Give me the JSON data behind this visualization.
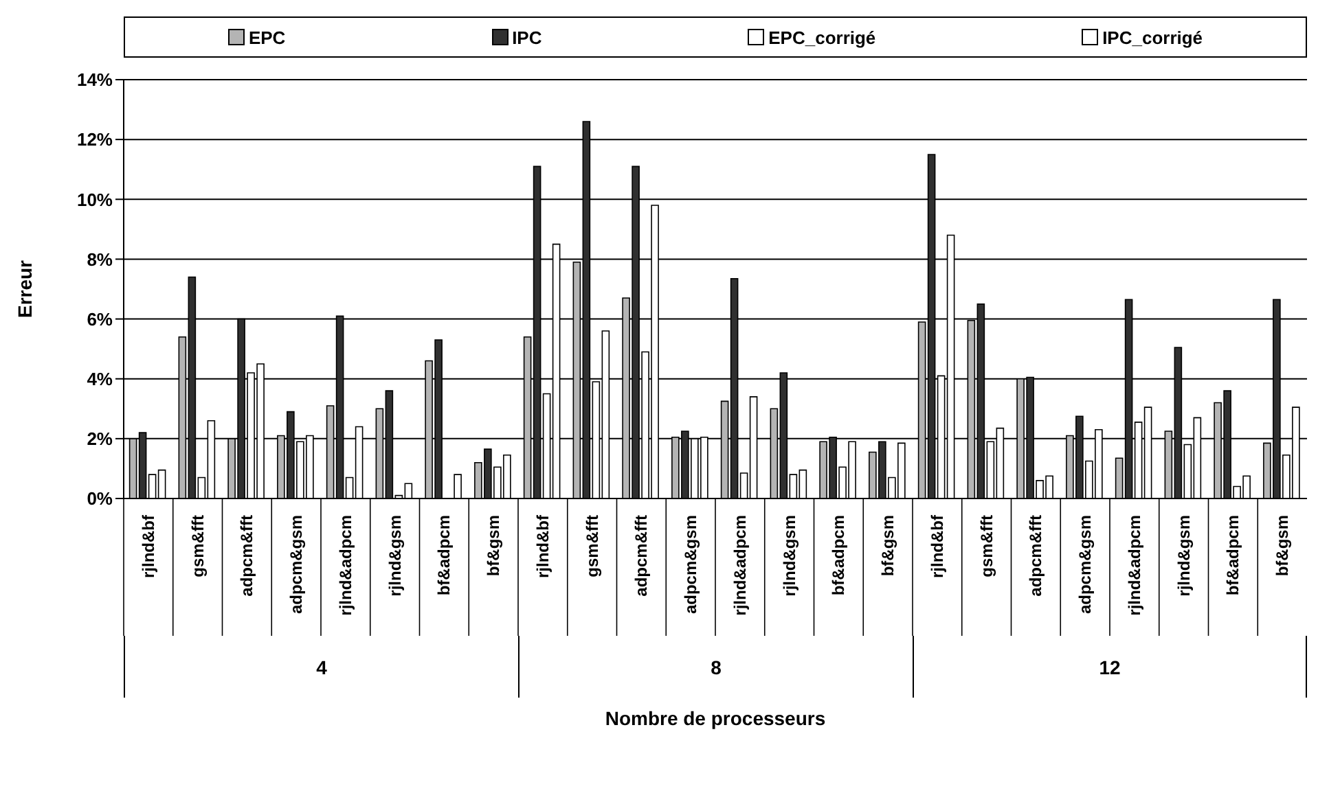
{
  "chart_data": {
    "type": "bar",
    "xlabel": "Nombre de processeurs",
    "ylabel": "Erreur",
    "categories": [
      "rjlnd&bf",
      "gsm&fft",
      "adpcm&fft",
      "adpcm&gsm",
      "rjlnd&adpcm",
      "rjlnd&gsm",
      "bf&adpcm",
      "bf&gsm",
      "rjlnd&bf",
      "gsm&fft",
      "adpcm&fft",
      "adpcm&gsm",
      "rjlnd&adpcm",
      "rjlnd&gsm",
      "bf&adpcm",
      "bf&gsm",
      "rjlnd&bf",
      "gsm&fft",
      "adpcm&fft",
      "adpcm&gsm",
      "rjlnd&adpcm",
      "rjlnd&gsm",
      "bf&adpcm",
      "bf&gsm"
    ],
    "annotations": [
      "4",
      "8",
      "12"
    ],
    "series": [
      {
        "name": "EPC",
        "color": "#b4b4b4",
        "values": [
          2.0,
          5.4,
          2.0,
          2.1,
          3.1,
          3.0,
          4.6,
          1.2,
          5.4,
          7.9,
          6.7,
          2.05,
          3.25,
          3.0,
          1.9,
          1.55,
          5.9,
          5.95,
          4.0,
          2.1,
          1.35,
          2.25,
          3.2,
          1.85
        ]
      },
      {
        "name": "IPC",
        "color": "#303030",
        "values": [
          2.2,
          7.4,
          6.0,
          2.9,
          6.1,
          3.6,
          5.3,
          1.65,
          11.1,
          12.6,
          11.1,
          2.25,
          7.35,
          4.2,
          2.05,
          1.9,
          11.5,
          6.5,
          4.05,
          2.75,
          6.65,
          5.05,
          3.6,
          6.65
        ]
      },
      {
        "name": "EPC_corrigé",
        "color": "#ffffff",
        "values": [
          0.8,
          0.7,
          4.2,
          1.9,
          0.7,
          0.1,
          null,
          1.05,
          3.5,
          3.9,
          4.9,
          2.0,
          0.85,
          0.8,
          1.05,
          0.7,
          4.1,
          1.9,
          0.6,
          1.25,
          2.55,
          1.8,
          0.4,
          1.45
        ]
      },
      {
        "name": "IPC_corrigé",
        "color": "#ffffff",
        "values": [
          0.95,
          2.6,
          4.5,
          2.1,
          2.4,
          0.5,
          0.8,
          1.45,
          8.5,
          5.6,
          9.8,
          2.05,
          3.4,
          0.95,
          1.9,
          1.85,
          8.8,
          2.35,
          0.75,
          2.3,
          3.05,
          2.7,
          0.75,
          3.05
        ]
      }
    ],
    "ylim": [
      0,
      14
    ],
    "yticks": [
      {
        "value": 0,
        "label": "0%"
      },
      {
        "value": 2,
        "label": "2%"
      },
      {
        "value": 4,
        "label": "4%"
      },
      {
        "value": 6,
        "label": "6%"
      },
      {
        "value": 8,
        "label": "8%"
      },
      {
        "value": 10,
        "label": "10%"
      },
      {
        "value": 12,
        "label": "12%"
      },
      {
        "value": 14,
        "label": "14%"
      }
    ],
    "grid": "y",
    "legend": "top"
  }
}
